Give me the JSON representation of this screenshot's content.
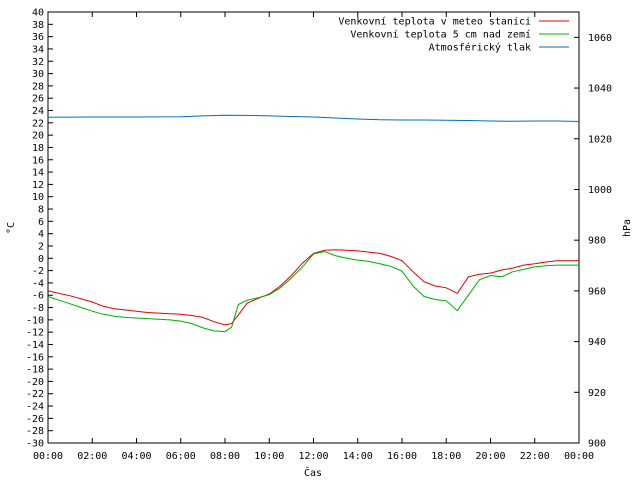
{
  "chart_data": {
    "type": "line",
    "title": "",
    "xlabel": "Čas",
    "ylabel": "°C",
    "y2label": "hPa",
    "grid": false,
    "legend_position": "top-right",
    "xlim": [
      0,
      24
    ],
    "ylim": [
      -30,
      40
    ],
    "y2lim": [
      900,
      1070
    ],
    "x_ticks": [
      "00:00",
      "02:00",
      "04:00",
      "06:00",
      "08:00",
      "10:00",
      "12:00",
      "14:00",
      "16:00",
      "18:00",
      "20:00",
      "22:00",
      "00:00"
    ],
    "y_ticks": [
      40,
      38,
      36,
      34,
      32,
      30,
      28,
      26,
      24,
      22,
      20,
      18,
      16,
      14,
      12,
      10,
      8,
      6,
      4,
      2,
      0,
      -2,
      -4,
      -6,
      -8,
      -10,
      -12,
      -14,
      -16,
      -18,
      -20,
      -22,
      -24,
      -26,
      -28,
      -30
    ],
    "y2_ticks": [
      1060,
      1040,
      1020,
      1000,
      980,
      960,
      940,
      920,
      900
    ],
    "series": [
      {
        "name": "Venkovní teplota v meteo stanici",
        "axis": "left",
        "color": "#e00000",
        "x": [
          0,
          0.5,
          1,
          1.5,
          2,
          2.5,
          3,
          3.5,
          4,
          4.5,
          5,
          5.5,
          6,
          6.5,
          7,
          7.5,
          8,
          8.3,
          8.6,
          9,
          9.5,
          10,
          10.5,
          11,
          11.5,
          12,
          12.5,
          13,
          13.5,
          14,
          14.5,
          15,
          15.5,
          16,
          16.5,
          17,
          17.5,
          18,
          18.5,
          19,
          19.5,
          20,
          20.5,
          21,
          21.5,
          22,
          22.5,
          23,
          23.5,
          24
        ],
        "values": [
          -5.3,
          -5.7,
          -6.1,
          -6.6,
          -7.1,
          -7.8,
          -8.2,
          -8.4,
          -8.6,
          -8.8,
          -8.9,
          -9.0,
          -9.1,
          -9.3,
          -9.6,
          -10.3,
          -10.8,
          -10.6,
          -9.2,
          -7.3,
          -6.5,
          -5.8,
          -4.5,
          -2.8,
          -0.8,
          0.8,
          1.3,
          1.4,
          1.3,
          1.2,
          1.0,
          0.8,
          0.3,
          -0.4,
          -2.2,
          -3.8,
          -4.5,
          -4.8,
          -5.7,
          -3.0,
          -2.6,
          -2.4,
          -1.9,
          -1.6,
          -1.1,
          -0.9,
          -0.6,
          -0.4,
          -0.4,
          -0.4
        ]
      },
      {
        "name": "Venkovní teplota 5 cm nad zemí",
        "axis": "left",
        "color": "#00b000",
        "x": [
          0,
          0.5,
          1,
          1.5,
          2,
          2.5,
          3,
          3.5,
          4,
          4.5,
          5,
          5.5,
          6,
          6.5,
          7,
          7.5,
          8,
          8.3,
          8.6,
          9,
          9.5,
          10,
          10.5,
          11,
          11.5,
          12,
          12.5,
          13,
          13.5,
          14,
          14.5,
          15,
          15.5,
          16,
          16.5,
          17,
          17.5,
          18,
          18.5,
          19,
          19.5,
          20,
          20.5,
          21,
          21.5,
          22,
          22.5,
          23,
          23.5,
          24
        ],
        "values": [
          -6.2,
          -6.8,
          -7.4,
          -8.0,
          -8.6,
          -9.1,
          -9.4,
          -9.6,
          -9.7,
          -9.8,
          -9.9,
          -10.0,
          -10.2,
          -10.6,
          -11.3,
          -11.8,
          -11.9,
          -11.2,
          -7.5,
          -6.8,
          -6.4,
          -5.9,
          -4.8,
          -3.2,
          -1.4,
          0.7,
          1.1,
          0.4,
          0.0,
          -0.3,
          -0.5,
          -0.9,
          -1.3,
          -2.1,
          -4.5,
          -6.2,
          -6.7,
          -6.9,
          -8.5,
          -6.0,
          -3.5,
          -2.8,
          -3.0,
          -2.2,
          -1.8,
          -1.4,
          -1.2,
          -1.1,
          -1.1,
          -1.1
        ]
      },
      {
        "name": "Atmosférický tlak",
        "axis": "right",
        "color": "#0070c0",
        "x": [
          0,
          2,
          4,
          6,
          7,
          8,
          9,
          10,
          11,
          12,
          13,
          14,
          15,
          16,
          17,
          18,
          19,
          20,
          21,
          22,
          23,
          24
        ],
        "values": [
          1028.5,
          1028.6,
          1028.6,
          1028.7,
          1029.0,
          1029.3,
          1029.2,
          1029.0,
          1028.8,
          1028.6,
          1028.2,
          1027.8,
          1027.5,
          1027.4,
          1027.4,
          1027.3,
          1027.2,
          1027.0,
          1026.9,
          1027.0,
          1027.0,
          1026.8
        ]
      }
    ]
  }
}
